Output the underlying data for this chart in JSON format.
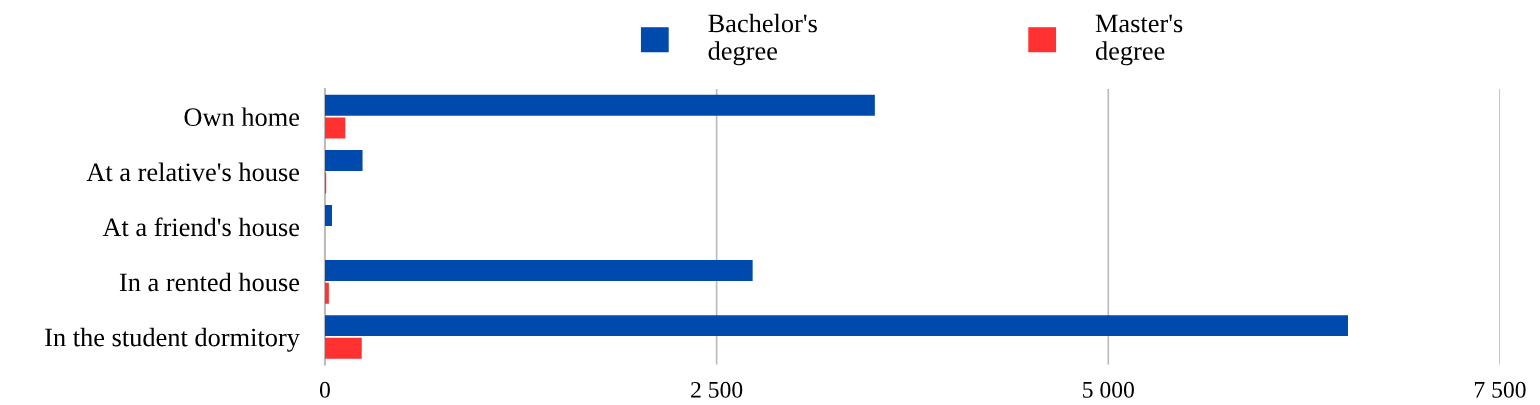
{
  "chart_data": {
    "type": "bar",
    "orientation": "horizontal",
    "categories": [
      "Own home",
      "At a relative's house",
      "At a friend's house",
      "In a rented house",
      "In the student dormitory"
    ],
    "series": [
      {
        "name": "Bachelor's degree",
        "color": "#004aad",
        "values": [
          3510,
          240,
          45,
          2730,
          6530
        ]
      },
      {
        "name": "Master's degree",
        "color": "#ff3131",
        "values": [
          130,
          8,
          null,
          25,
          235
        ]
      }
    ],
    "xlim": [
      0,
      7500
    ],
    "xticks": [
      0,
      {
        "value": 2500,
        "label": "2 500"
      },
      {
        "value": 5000,
        "label": "5 000"
      },
      {
        "value": 7500,
        "label": "7 500"
      }
    ],
    "grid": "x",
    "legend": "top"
  }
}
